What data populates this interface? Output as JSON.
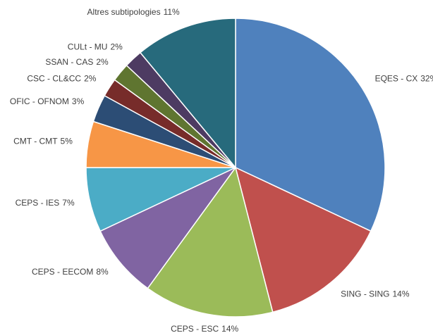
{
  "chart_data": {
    "type": "pie",
    "categories": [
      "EQES - CX",
      "SING - SING",
      "CEPS - ESC",
      "CEPS - EECOM",
      "CEPS - IES",
      "CMT - CMT",
      "OFIC - OFNOM",
      "CSC - CL&CC",
      "SSAN - CAS",
      "CULt - MU",
      "Altres subtipologies"
    ],
    "values": [
      32,
      14,
      14,
      8,
      7,
      5,
      3,
      2,
      2,
      2,
      11
    ],
    "value_labels": [
      "32%",
      "14%",
      "14%",
      "8%",
      "7%",
      "5%",
      "3%",
      "2%",
      "2%",
      "2%",
      "11%"
    ],
    "colors": [
      "#4f81bd",
      "#c0504d",
      "#9bbb59",
      "#8064a2",
      "#4bacc6",
      "#f79646",
      "#2c4d75",
      "#772c2a",
      "#5f7530",
      "#4d3b62",
      "#276a7c"
    ]
  }
}
